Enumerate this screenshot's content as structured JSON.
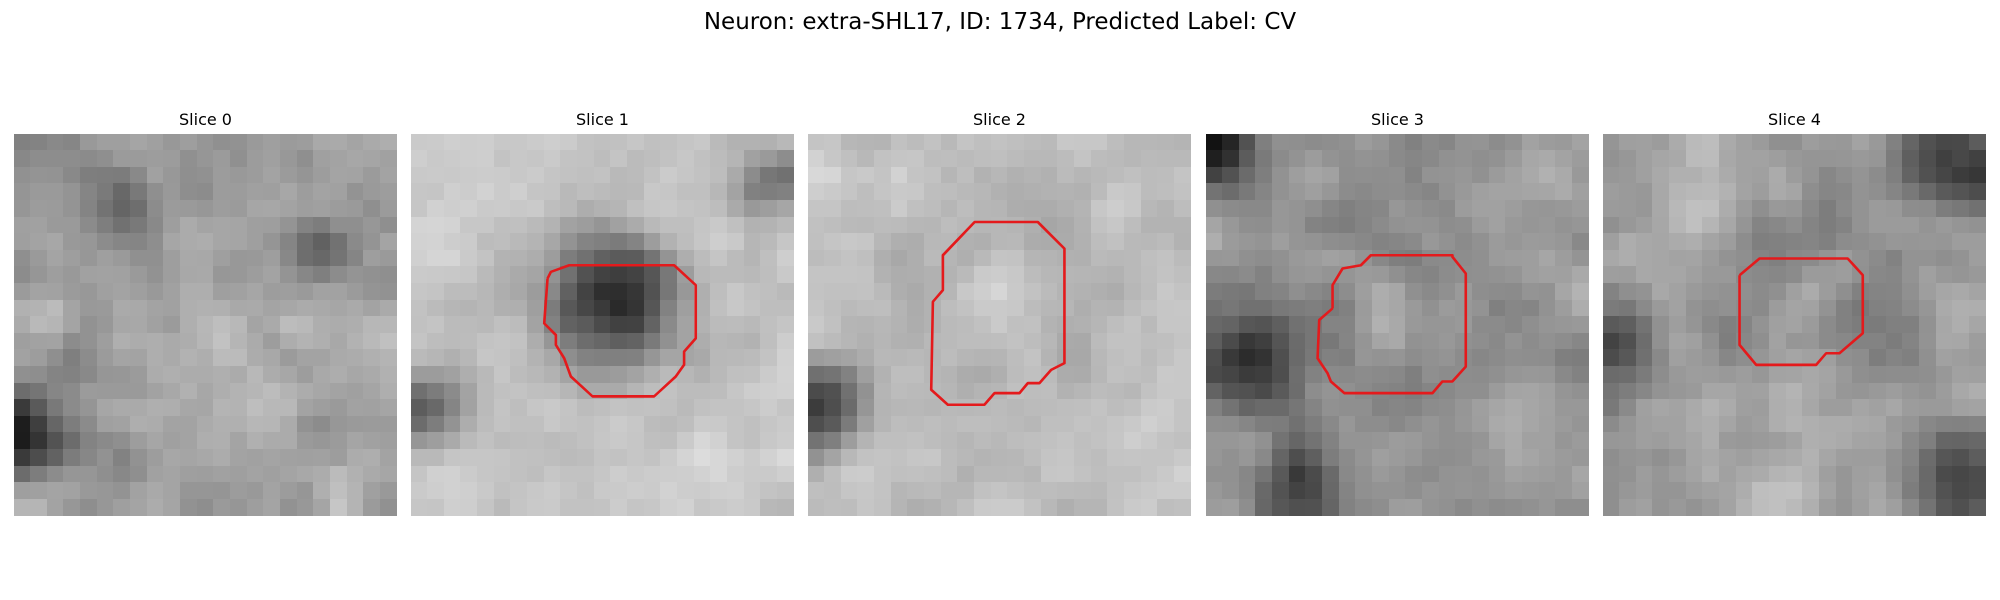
{
  "figure": {
    "title": "Neuron: extra-SHL17, ID: 1734, Predicted Label: CV"
  },
  "colors": {
    "background": "#ffffff",
    "contour": "#e41a1c",
    "colormap": "grayscale"
  },
  "panels": [
    {
      "title": "Slice 0",
      "has_contour": false
    },
    {
      "title": "Slice 1",
      "has_contour": true
    },
    {
      "title": "Slice 2",
      "has_contour": true
    },
    {
      "title": "Slice 3",
      "has_contour": true
    },
    {
      "title": "Slice 4",
      "has_contour": true
    }
  ]
}
